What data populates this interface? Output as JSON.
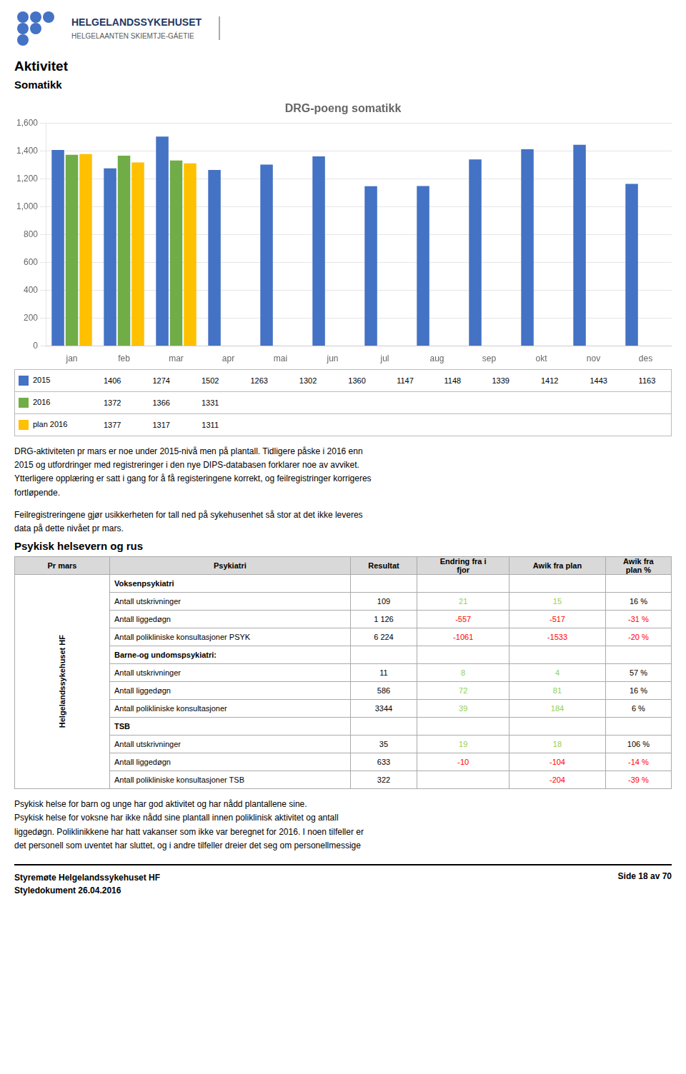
{
  "chart_data": {
    "type": "bar",
    "title": "DRG-poeng somatikk",
    "categories": [
      "jan",
      "feb",
      "mar",
      "apr",
      "mai",
      "jun",
      "jul",
      "aug",
      "sep",
      "okt",
      "nov",
      "des"
    ],
    "series": [
      {
        "name": "2015",
        "color": "#4472C4",
        "values": [
          1406,
          1274,
          1502,
          1263,
          1302,
          1360,
          1147,
          1148,
          1339,
          1412,
          1443,
          1163
        ]
      },
      {
        "name": "2016",
        "color": "#70AD47",
        "values": [
          1372,
          1366,
          1331,
          null,
          null,
          null,
          null,
          null,
          null,
          null,
          null,
          null
        ]
      },
      {
        "name": "plan 2016",
        "color": "#FFC000",
        "values": [
          1377,
          1317,
          1311,
          null,
          null,
          null,
          null,
          null,
          null,
          null,
          null,
          null
        ]
      }
    ],
    "ylim": [
      0,
      1600
    ],
    "yticks": [
      0,
      200,
      400,
      600,
      800,
      1000,
      1200,
      1400,
      1600
    ],
    "grid": true
  },
  "page": {
    "logo_title": "HELGELANDSSYKEHUSET",
    "logo_subtitle": "HELGELAANTEN SKIEMTJE-GÁETIE",
    "header_title": "Aktivitet",
    "sub_title": "Somatikk",
    "paragraph1": "DRG-aktiviteten pr mars er noe under 2015-nivå men på plantall. Tidligere påske i 2016 enn\n2015 og utfordringer med registreringer i den nye DIPS-databasen forklarer noe av avviket.\nYtterligere opplæring er satt i gang for å få registeringene korrekt, og feilregistringer korrigeres\nfortløpende.",
    "paragraph2": "Feilregistreringene gjør usikkerheten for tall ned på sykehusenhet så stor at det ikke leveres\ndata på dette nivået pr mars.",
    "psyk_header": "Psykisk helsevern og rus",
    "table": {
      "columns": [
        "Pr mars",
        "Psykiatri",
        "Resultat",
        "Endring fra i\nfjor",
        "Awik fra plan",
        "Awik fra\nplan %"
      ],
      "group_label": "Helgelandssykehuset HF",
      "sections": [
        {
          "name": "Voksenpsykiatri",
          "rows": [
            {
              "cells": [
                "Antall utskrivninger",
                "109",
                "21",
                "15",
                "16 %"
              ],
              "colors": [
                "#92D050",
                "#92D050",
                "#000000"
              ]
            },
            {
              "cells": [
                "Antall liggedøgn",
                "1 126",
                "-557",
                "-517",
                "-31 %"
              ],
              "colors": [
                "#FF0000",
                "#FF0000",
                "#FF0000"
              ]
            },
            {
              "cells": [
                "Antall polikliniske konsultasjoner PSYK",
                "6 224",
                "-1061",
                "-1533",
                "-20 %"
              ],
              "colors": [
                "#FF0000",
                "#FF0000",
                "#FF0000"
              ]
            }
          ]
        },
        {
          "name": "Barne-og undomspsykiatri:",
          "rows": [
            {
              "cells": [
                "Antall utskrivninger",
                "11",
                "8",
                "4",
                "57 %"
              ],
              "colors": [
                "#92D050",
                "#92D050",
                "#000000"
              ]
            },
            {
              "cells": [
                "Antall liggedøgn",
                "586",
                "72",
                "81",
                "16 %"
              ],
              "colors": [
                "#92D050",
                "#92D050",
                "#000000"
              ]
            },
            {
              "cells": [
                "Antall polikliniske konsultasjoner",
                "3344",
                "39",
                "184",
                "6 %"
              ],
              "colors": [
                "#92D050",
                "#92D050",
                "#000000"
              ]
            }
          ]
        },
        {
          "name": "TSB",
          "rows": [
            {
              "cells": [
                "Antall utskrivninger",
                "35",
                "19",
                "18",
                "106 %"
              ],
              "colors": [
                "#92D050",
                "#92D050",
                "#000000"
              ]
            },
            {
              "cells": [
                "Antall liggedøgn",
                "633",
                "-10",
                "-104",
                "-14 %"
              ],
              "colors": [
                "#FF0000",
                "#FF0000",
                "#FF0000"
              ]
            },
            {
              "cells": [
                "Antall polikliniske konsultasjoner TSB",
                "322",
                null,
                "-204",
                "-39 %"
              ],
              "colors": [
                null,
                "#FF0000",
                "#FF0000"
              ]
            }
          ]
        }
      ]
    },
    "paragraph3": "Psykisk helse for barn og unge har god aktivitet og har nådd plantallene sine.\nPsykisk helse for voksne har ikke nådd sine plantall innen poliklinisk aktivitet og antall\nliggedøgn.  Poliklinikkene har hatt vakanser som ikke var beregnet for 2016.  I noen tilfeller er\ndet personell som uventet har sluttet, og i andre tilfeller dreier det seg om personellmessige",
    "footer_left": "Styremøte Helgelandssykehuset HF\nStyledokument 26.04.2016",
    "footer_right": "Side 18 av 70"
  }
}
